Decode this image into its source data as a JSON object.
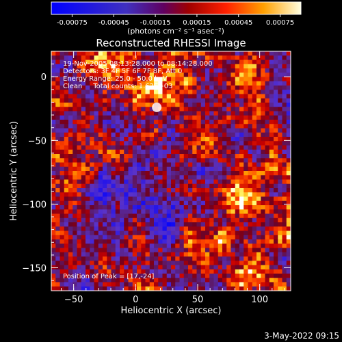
{
  "colorbar": {
    "ticks": [
      "-0.00075",
      "-0.00045",
      "-0.00015",
      "0.00015",
      "0.00045",
      "0.00075"
    ],
    "units": "(photons cm⁻² s⁻¹ asec⁻²)"
  },
  "footer": {
    "timestamp": "3-May-2022 09:15"
  },
  "chart_data": {
    "type": "heatmap",
    "title": "Reconstructed RHESSI Image",
    "xlabel": "Heliocentric X (arcsec)",
    "ylabel": "Heliocentric Y (arcsec)",
    "xlim": [
      -68,
      125
    ],
    "ylim": [
      -168,
      20
    ],
    "x_ticks": [
      {
        "value": -50,
        "label": "−50"
      },
      {
        "value": 0,
        "label": "0"
      },
      {
        "value": 50,
        "label": "50"
      },
      {
        "value": 100,
        "label": "100"
      }
    ],
    "y_ticks": [
      {
        "value": 0,
        "label": "0"
      },
      {
        "value": -50,
        "label": "−50"
      },
      {
        "value": -100,
        "label": "−100"
      },
      {
        "value": -150,
        "label": "−150"
      }
    ],
    "annotations": [
      "19-Nov-2005 08:13:28.000 to 08:14:28.000",
      "Detectors: 3F 4F 5F 6F 7F 8F, Att 0",
      "Energy Range: 25.0 - 50.0 keV",
      "Clean     Total counts: 1.62E+03"
    ],
    "peak_label": "Position of Peak = [17,-24]",
    "peak": {
      "x": 17,
      "y": -24
    },
    "value_range": [
      -0.00075,
      0.00075
    ],
    "colormap": [
      "#0000ff",
      "#5a2aa0",
      "#800000",
      "#ff0000",
      "#ffa000",
      "#ffff60",
      "#ffffff"
    ]
  }
}
